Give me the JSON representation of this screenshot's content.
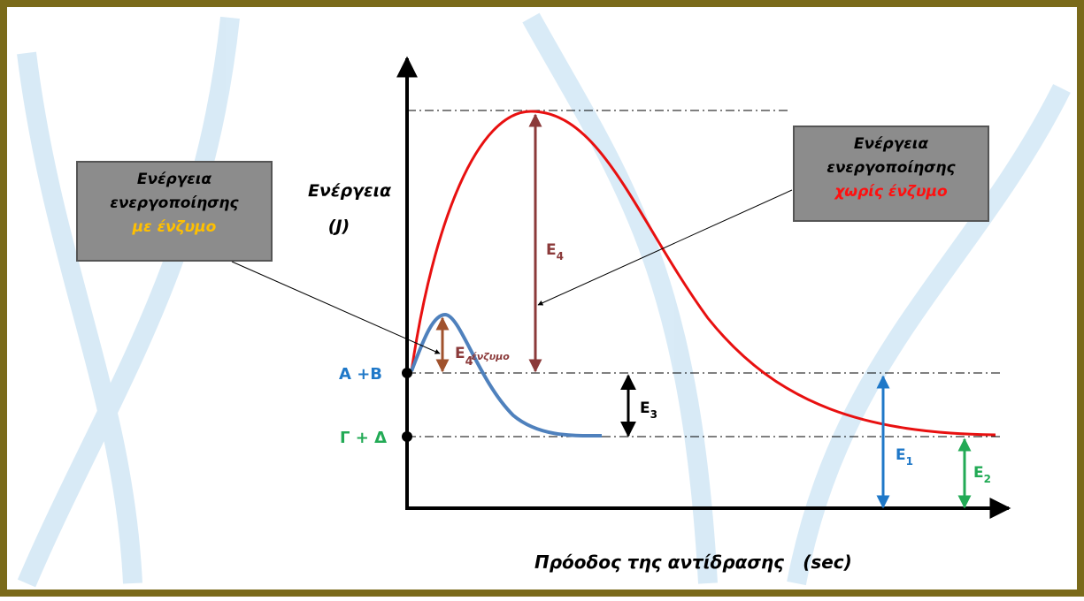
{
  "axis": {
    "y_label": "Ενέργεια",
    "y_unit": "(J)",
    "x_label": "Πρόοδος της αντίδρασης",
    "x_unit": "(sec)"
  },
  "levels": {
    "reactants": "Α +Β",
    "products": "Γ + Δ"
  },
  "callouts": [
    {
      "line1": "Ενέργεια",
      "line2": "ενεργοποίησης",
      "line3": "με ένζυμο"
    },
    {
      "line1": "Ενέργεια",
      "line2": "ενεργοποίησης",
      "line3": "χωρίς ένζυμο"
    }
  ],
  "energies": [
    {
      "symbol": "Ε",
      "sub": "4"
    },
    {
      "symbol": "Ε",
      "sub": "4",
      "note": "ένζυμο"
    },
    {
      "symbol": "Ε",
      "sub": "3"
    },
    {
      "symbol": "Ε",
      "sub": "1"
    },
    {
      "symbol": "Ε",
      "sub": "2"
    }
  ]
}
